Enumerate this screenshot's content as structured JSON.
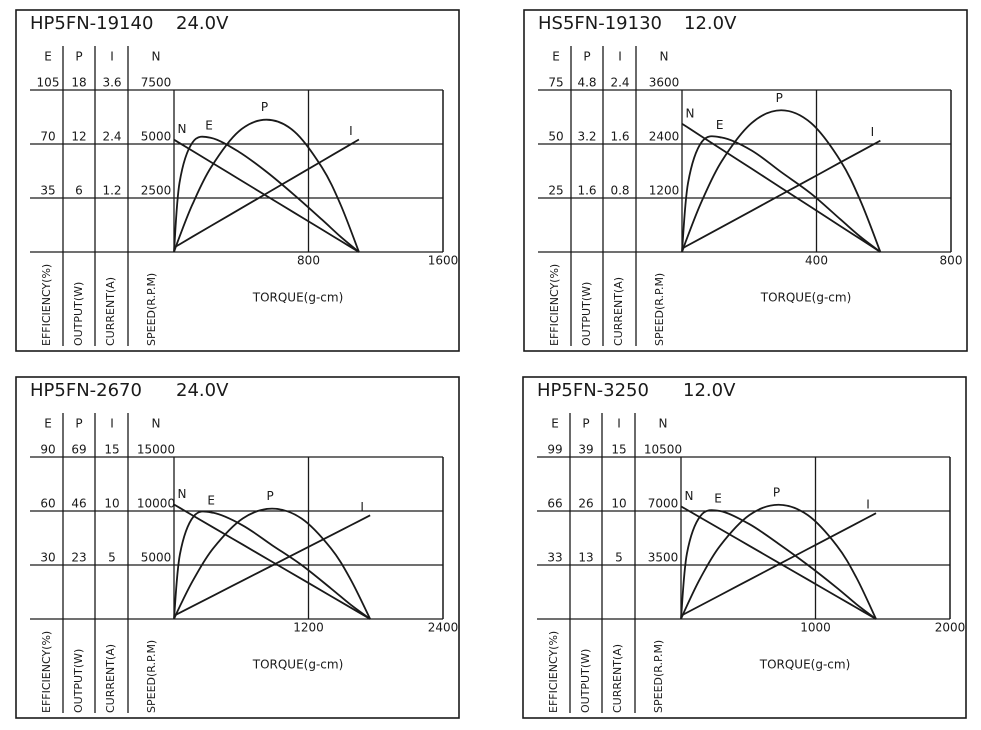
{
  "chart_data": [
    {
      "type": "line",
      "title": "HP5FN-19140",
      "subtitle": "24.0V",
      "xlabel": "TORQUE(g-cm)",
      "color": "#1a1a1a",
      "xlim": [
        0,
        1600
      ],
      "xticks": [
        800,
        1600
      ],
      "axes": [
        {
          "name": "E",
          "label": "EFFICIENCY(%)",
          "ylim": [
            0,
            105
          ],
          "yticks": [
            35,
            70,
            105
          ]
        },
        {
          "name": "P",
          "label": "OUTPUT(W)",
          "ylim": [
            0,
            18
          ],
          "yticks": [
            6,
            12,
            18
          ]
        },
        {
          "name": "I",
          "label": "CURRENT(A)",
          "ylim": [
            0,
            3.6
          ],
          "yticks": [
            1.2,
            2.4,
            3.6
          ]
        },
        {
          "name": "N",
          "label": "SPEED(R.P.M)",
          "ylim": [
            0,
            7500
          ],
          "yticks": [
            2500,
            5000,
            7500
          ]
        }
      ],
      "x": [
        0,
        33,
        110,
        220,
        385,
        550,
        715,
        880,
        990,
        1100
      ],
      "series": [
        {
          "name": "N",
          "axis": "N",
          "values": [
            5200,
            5044,
            4680,
            4160,
            3380,
            2600,
            1820,
            1040,
            520,
            0
          ]
        },
        {
          "name": "E",
          "axis": "E",
          "values": [
            0,
            45,
            71,
            74,
            65,
            52,
            37,
            21,
            10,
            0
          ]
        },
        {
          "name": "P",
          "axis": "P",
          "values": [
            0,
            1.7,
            5.3,
            9.4,
            13.4,
            14.7,
            13.4,
            9.4,
            5.3,
            0
          ]
        },
        {
          "name": "I",
          "axis": "I",
          "values": [
            0.1,
            0.17,
            0.34,
            0.58,
            0.94,
            1.3,
            1.66,
            2.02,
            2.26,
            2.5
          ]
        }
      ]
    },
    {
      "type": "line",
      "title": "HS5FN-19130",
      "subtitle": "12.0V",
      "xlabel": "TORQUE(g-cm)",
      "color": "#1a1a1a",
      "xlim": [
        0,
        800
      ],
      "xticks": [
        400,
        800
      ],
      "axes": [
        {
          "name": "E",
          "label": "EFFICIENCY(%)",
          "ylim": [
            0,
            75
          ],
          "yticks": [
            25,
            50,
            75
          ]
        },
        {
          "name": "P",
          "label": "OUTPUT(W)",
          "ylim": [
            0,
            4.8
          ],
          "yticks": [
            1.6,
            3.2,
            4.8
          ]
        },
        {
          "name": "I",
          "label": "CURRENT(A)",
          "ylim": [
            0,
            2.4
          ],
          "yticks": [
            0.8,
            1.6,
            2.4
          ]
        },
        {
          "name": "N",
          "label": "SPEED(R.P.M)",
          "ylim": [
            0,
            3600
          ],
          "yticks": [
            1200,
            2400,
            3600
          ]
        }
      ],
      "x": [
        0,
        18,
        59,
        118,
        207,
        295,
        384,
        472,
        531,
        590
      ],
      "series": [
        {
          "name": "N",
          "axis": "N",
          "values": [
            2850,
            2765,
            2565,
            2280,
            1853,
            1425,
            998,
            570,
            285,
            0
          ]
        },
        {
          "name": "E",
          "axis": "E",
          "values": [
            0,
            32,
            51,
            53,
            47,
            37,
            27,
            15,
            7,
            0
          ]
        },
        {
          "name": "P",
          "axis": "P",
          "values": [
            0,
            0.49,
            1.51,
            2.69,
            3.82,
            4.2,
            3.82,
            2.69,
            1.51,
            0
          ]
        },
        {
          "name": "I",
          "axis": "I",
          "values": [
            0.05,
            0.1,
            0.21,
            0.37,
            0.61,
            0.85,
            1.09,
            1.33,
            1.49,
            1.65
          ]
        }
      ]
    },
    {
      "type": "line",
      "title": "HP5FN-2670",
      "subtitle": "24.0V",
      "xlabel": "TORQUE(g-cm)",
      "color": "#1a1a1a",
      "xlim": [
        0,
        2400
      ],
      "xticks": [
        1200,
        2400
      ],
      "axes": [
        {
          "name": "E",
          "label": "EFFICIENCY(%)",
          "ylim": [
            0,
            90
          ],
          "yticks": [
            30,
            60,
            90
          ]
        },
        {
          "name": "P",
          "label": "OUTPUT(W)",
          "ylim": [
            0,
            69
          ],
          "yticks": [
            23,
            46,
            69
          ]
        },
        {
          "name": "I",
          "label": "CURRENT(A)",
          "ylim": [
            0,
            15
          ],
          "yticks": [
            5,
            10,
            15
          ]
        },
        {
          "name": "N",
          "label": "SPEED(R.P.M)",
          "ylim": [
            0,
            15000
          ],
          "yticks": [
            5000,
            10000,
            15000
          ]
        }
      ],
      "x": [
        0,
        53,
        175,
        350,
        613,
        875,
        1138,
        1400,
        1575,
        1750
      ],
      "series": [
        {
          "name": "N",
          "axis": "N",
          "values": [
            10600,
            10282,
            9540,
            8480,
            6890,
            5300,
            3710,
            2120,
            1060,
            0
          ]
        },
        {
          "name": "E",
          "axis": "E",
          "values": [
            0,
            36,
            57,
            59,
            52,
            41,
            30,
            17,
            8,
            0
          ]
        },
        {
          "name": "P",
          "axis": "P",
          "values": [
            0,
            5.5,
            16.9,
            30.1,
            42.8,
            47,
            42.8,
            30.1,
            16.9,
            0
          ]
        },
        {
          "name": "I",
          "axis": "I",
          "values": [
            0.3,
            0.58,
            1.23,
            2.16,
            3.56,
            4.95,
            6.35,
            7.74,
            8.67,
            9.6
          ]
        }
      ]
    },
    {
      "type": "line",
      "title": "HP5FN-3250",
      "subtitle": "12.0V",
      "xlabel": "TORQUE(g-cm)",
      "color": "#1a1a1a",
      "xlim": [
        0,
        2000
      ],
      "xticks": [
        1000,
        2000
      ],
      "axes": [
        {
          "name": "E",
          "label": "EFFICIENCY(%)",
          "ylim": [
            0,
            99
          ],
          "yticks": [
            33,
            66,
            99
          ]
        },
        {
          "name": "P",
          "label": "OUTPUT(W)",
          "ylim": [
            0,
            39
          ],
          "yticks": [
            13,
            26,
            39
          ]
        },
        {
          "name": "I",
          "label": "CURRENT(A)",
          "ylim": [
            0,
            15
          ],
          "yticks": [
            5,
            10,
            15
          ]
        },
        {
          "name": "N",
          "label": "SPEED(R.P.M)",
          "ylim": [
            0,
            10500
          ],
          "yticks": [
            3500,
            7000,
            10500
          ]
        }
      ],
      "x": [
        0,
        44,
        145,
        290,
        508,
        725,
        943,
        1160,
        1305,
        1450
      ],
      "series": [
        {
          "name": "N",
          "axis": "N",
          "values": [
            7300,
            7081,
            6570,
            5840,
            4745,
            3650,
            2555,
            1460,
            730,
            0
          ]
        },
        {
          "name": "E",
          "axis": "E",
          "values": [
            0,
            40,
            63,
            66,
            58,
            46,
            33,
            19,
            9,
            0
          ]
        },
        {
          "name": "P",
          "axis": "P",
          "values": [
            0,
            3.2,
            9.9,
            17.6,
            25,
            27.5,
            25,
            17.6,
            9.9,
            0
          ]
        },
        {
          "name": "I",
          "axis": "I",
          "values": [
            0.3,
            0.59,
            1.25,
            2.2,
            3.63,
            5.05,
            6.48,
            7.9,
            8.85,
            9.8
          ]
        }
      ]
    }
  ]
}
